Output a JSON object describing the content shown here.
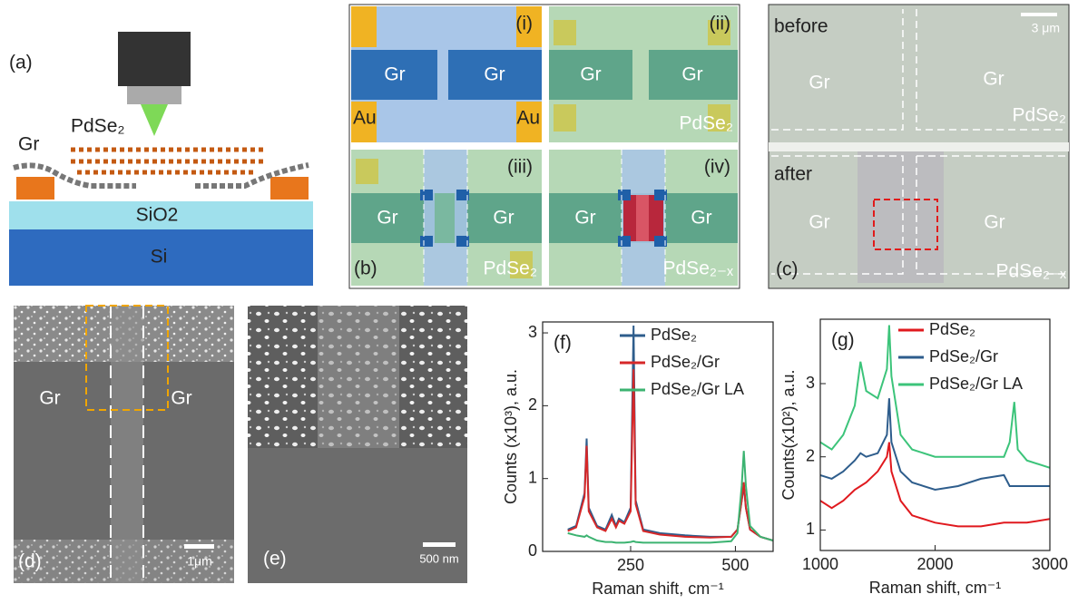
{
  "panels": {
    "a": {
      "label": "(a)",
      "graphene": "Gr",
      "flake": "PdSe₂",
      "oxide": "SiO2",
      "substrate": "Si"
    },
    "b": {
      "label": "(b)",
      "quadrants": [
        {
          "label": "(i)",
          "left": "Gr",
          "right": "Gr",
          "contacts": [
            "Au",
            "Au"
          ]
        },
        {
          "label": "(ii)",
          "left": "Gr",
          "right": "Gr",
          "flake": "PdSe₂"
        },
        {
          "label": "(iii)",
          "left": "Gr",
          "right": "Gr",
          "flake": "PdSe₂"
        },
        {
          "label": "(iv)",
          "left": "Gr",
          "right": "Gr",
          "flake": "PdSe₂₋ₓ"
        }
      ]
    },
    "c": {
      "label": "(c)",
      "scale_bar": "3 μm",
      "before": {
        "title": "before",
        "left": "Gr",
        "right": "Gr",
        "flake": "PdSe₂"
      },
      "after": {
        "title": "after",
        "left": "Gr",
        "right": "Gr",
        "flake": "PdSe₂₋ₓ"
      }
    },
    "d": {
      "label": "(d)",
      "left": "Gr",
      "right": "Gr",
      "scale_bar": "1μm"
    },
    "e": {
      "label": "(e)",
      "scale_bar": "500 nm"
    }
  },
  "chart_data": [
    {
      "type": "line",
      "label": "(f)",
      "xlabel": "Raman shift, cm⁻¹",
      "ylabel": "Counts (x10³), a.u.",
      "x": [
        100,
        120,
        140,
        145,
        150,
        170,
        190,
        205,
        215,
        222,
        235,
        250,
        257,
        262,
        280,
        320,
        380,
        440,
        490,
        505,
        515,
        520,
        525,
        535,
        560,
        590
      ],
      "xlim": [
        40,
        590
      ],
      "xticks": [
        250,
        500
      ],
      "ylim": [
        0,
        3.15
      ],
      "yticks": [
        0,
        1,
        2,
        3
      ],
      "series": [
        {
          "name": "PdSe₂",
          "color": "#2e5d8c",
          "values": [
            0.3,
            0.35,
            0.8,
            1.55,
            0.6,
            0.35,
            0.3,
            0.5,
            0.35,
            0.45,
            0.4,
            0.6,
            3.1,
            0.7,
            0.3,
            0.25,
            0.22,
            0.2,
            0.2,
            0.3,
            0.7,
            0.9,
            0.6,
            0.3,
            0.2,
            0.15
          ]
        },
        {
          "name": "PdSe₂/Gr",
          "color": "#d62728",
          "values": [
            0.28,
            0.33,
            0.75,
            1.45,
            0.55,
            0.33,
            0.28,
            0.45,
            0.33,
            0.42,
            0.38,
            0.55,
            2.5,
            0.65,
            0.28,
            0.23,
            0.2,
            0.19,
            0.2,
            0.3,
            0.7,
            0.95,
            0.6,
            0.3,
            0.2,
            0.15
          ]
        },
        {
          "name": "PdSe₂/Gr LA",
          "color": "#3cb371",
          "values": [
            0.25,
            0.22,
            0.2,
            0.22,
            0.2,
            0.15,
            0.13,
            0.13,
            0.12,
            0.12,
            0.12,
            0.13,
            0.14,
            0.13,
            0.12,
            0.12,
            0.12,
            0.12,
            0.14,
            0.25,
            0.9,
            1.38,
            0.9,
            0.35,
            0.2,
            0.15
          ]
        }
      ]
    },
    {
      "type": "line",
      "label": "(g)",
      "xlabel": "Raman shift, cm⁻¹",
      "ylabel": "Counts(x10²), a.u.",
      "x": [
        1000,
        1100,
        1200,
        1300,
        1350,
        1400,
        1500,
        1580,
        1600,
        1620,
        1700,
        1800,
        2000,
        2200,
        2400,
        2600,
        2650,
        2690,
        2720,
        2800,
        3000
      ],
      "xlim": [
        1000,
        3000
      ],
      "xticks": [
        1000,
        2000,
        3000
      ],
      "ylim": [
        0.72,
        3.88
      ],
      "yticks": [
        1,
        2,
        3
      ],
      "series": [
        {
          "name": "PdSe₂",
          "color": "#e0191e",
          "values": [
            1.4,
            1.3,
            1.4,
            1.55,
            1.6,
            1.65,
            1.8,
            2.0,
            2.2,
            1.8,
            1.4,
            1.2,
            1.1,
            1.05,
            1.05,
            1.1,
            1.1,
            1.1,
            1.1,
            1.1,
            1.15
          ]
        },
        {
          "name": "PdSe₂/Gr",
          "color": "#2e5d8c",
          "values": [
            1.75,
            1.7,
            1.8,
            1.95,
            2.05,
            2.0,
            2.05,
            2.3,
            2.8,
            2.2,
            1.8,
            1.65,
            1.55,
            1.6,
            1.7,
            1.75,
            1.6,
            1.6,
            1.6,
            1.6,
            1.6
          ]
        },
        {
          "name": "PdSe₂/Gr LA",
          "color": "#3cc47a",
          "values": [
            2.2,
            2.1,
            2.3,
            2.7,
            3.3,
            2.9,
            2.8,
            3.2,
            3.8,
            3.1,
            2.3,
            2.1,
            2.0,
            2.0,
            2.0,
            2.0,
            2.2,
            2.75,
            2.1,
            1.95,
            1.85
          ]
        }
      ]
    }
  ]
}
